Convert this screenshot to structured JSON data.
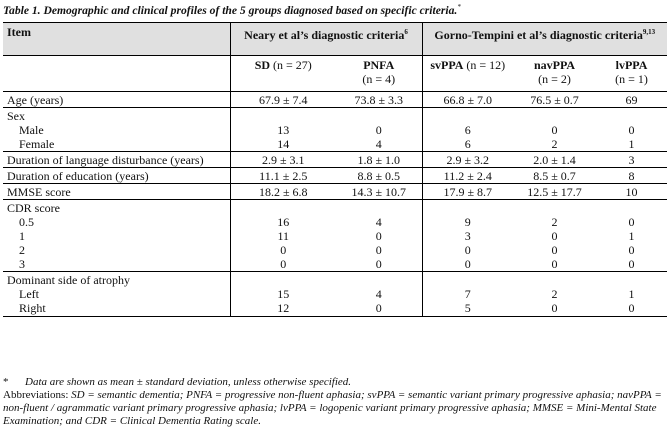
{
  "caption": {
    "text": "Table 1. Demographic and clinical profiles of the 5 groups diagnosed based on specific criteria.",
    "mark": "*"
  },
  "header": {
    "item": "Item",
    "group_a": "Neary et al’s diagnostic criteria",
    "group_a_ref": "6",
    "group_b": "Gorno-Tempini et al’s diagnostic criteria",
    "group_b_ref": "9,13",
    "cols": [
      {
        "name": "SD",
        "n": "(n = 27)"
      },
      {
        "name": "PNFA",
        "n": "(n = 4)"
      },
      {
        "name": "svPPA",
        "n": "(n = 12)"
      },
      {
        "name": "navPPA",
        "n": "(n = 2)"
      },
      {
        "name": "lvPPA",
        "n": "(n = 1)"
      }
    ]
  },
  "sections": [
    {
      "rows": [
        {
          "label": "Age (years)",
          "values": [
            "67.9 ± 7.4",
            "73.8 ± 3.3",
            "66.8 ± 7.0",
            "76.5 ± 0.7",
            "69"
          ]
        }
      ]
    },
    {
      "title": "Sex",
      "rows": [
        {
          "label": "Male",
          "values": [
            "13",
            "0",
            "6",
            "0",
            "0"
          ]
        },
        {
          "label": "Female",
          "values": [
            "14",
            "4",
            "6",
            "2",
            "1"
          ]
        }
      ]
    },
    {
      "rows": [
        {
          "label": "Duration of language disturbance (years)",
          "values": [
            "2.9 ± 3.1",
            "1.8 ± 1.0",
            "2.9 ± 3.2",
            "2.0 ± 1.4",
            "3"
          ]
        }
      ]
    },
    {
      "rows": [
        {
          "label": "Duration of education (years)",
          "values": [
            "11.1 ± 2.5",
            "8.8 ± 0.5",
            "11.2 ± 2.4",
            "8.5 ± 0.7",
            "8"
          ]
        }
      ]
    },
    {
      "rows": [
        {
          "label": "MMSE score",
          "values": [
            "18.2 ± 6.8",
            "14.3 ± 10.7",
            "17.9 ± 8.7",
            "12.5 ± 17.7",
            "10"
          ]
        }
      ]
    },
    {
      "title": "CDR score",
      "rows": [
        {
          "label": "0.5",
          "values": [
            "16",
            "4",
            "9",
            "2",
            "0"
          ]
        },
        {
          "label": "1",
          "values": [
            "11",
            "0",
            "3",
            "0",
            "1"
          ]
        },
        {
          "label": "2",
          "values": [
            "0",
            "0",
            "0",
            "0",
            "0"
          ]
        },
        {
          "label": "3",
          "values": [
            "0",
            "0",
            "0",
            "0",
            "0"
          ]
        }
      ]
    },
    {
      "title": "Dominant side of atrophy",
      "rows": [
        {
          "label": "Left",
          "values": [
            "15",
            "4",
            "7",
            "2",
            "1"
          ]
        },
        {
          "label": "Right",
          "values": [
            "12",
            "0",
            "5",
            "0",
            "0"
          ]
        }
      ]
    }
  ],
  "footnotes": {
    "star": "*",
    "star_text": "Data are shown as mean ± standard deviation, unless otherwise specified.",
    "abbr_label": "Abbreviations: ",
    "abbreviations": [
      {
        "term": "SD",
        "def": " = semantic dementia; "
      },
      {
        "term": "PNFA",
        "def": " = progressive non-fluent aphasia; "
      },
      {
        "term": "svPPA",
        "def": " = semantic variant primary progressive aphasia; "
      },
      {
        "term": "navPPA",
        "def": " = non-fluent / agrammatic variant primary progressive aphasia; "
      },
      {
        "term": "lvPPA",
        "def": " = logopenic variant primary progressive aphasia; "
      },
      {
        "term": "MMSE",
        "def": " = Mini-Mental State Examination; and "
      },
      {
        "term": "CDR",
        "def": " = Clinical Dementia Rating scale."
      }
    ]
  }
}
